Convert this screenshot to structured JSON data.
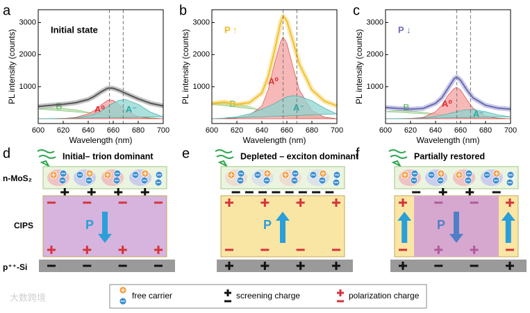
{
  "chart_data": [
    {
      "panel": "a",
      "type": "line",
      "annotation": "Initial state",
      "annotation_color": "#000000",
      "xlabel": "Wavelength (nm)",
      "ylabel": "PL intensity (counts)",
      "xlim": [
        600,
        700
      ],
      "ylim": [
        -150,
        3400
      ],
      "xticks": [
        600,
        620,
        640,
        660,
        680,
        700
      ],
      "yticks": [
        1000,
        2000,
        3000
      ],
      "vlines": [
        657,
        668
      ],
      "x": [
        600,
        610,
        620,
        630,
        640,
        645,
        650,
        655,
        657,
        660,
        665,
        670,
        680,
        690,
        700
      ],
      "series": [
        {
          "color": "#555555",
          "values": [
            380,
            420,
            450,
            500,
            600,
            700,
            830,
            940,
            960,
            950,
            880,
            790,
            620,
            480,
            400
          ]
        },
        {
          "name": "B",
          "color": "#7cc47a",
          "fill": "#b9dca5",
          "values": [
            300,
            330,
            320,
            280,
            200,
            160,
            120,
            80,
            60,
            50,
            30,
            20,
            10,
            5,
            0
          ]
        },
        {
          "name": "A⁰",
          "color": "#e03030",
          "fill": "#f4a0a0",
          "values": [
            0,
            0,
            10,
            40,
            150,
            260,
            420,
            560,
            590,
            570,
            430,
            260,
            60,
            10,
            0
          ]
        },
        {
          "name": "A⁻",
          "color": "#2aa8a0",
          "fill": "#8fd6d0",
          "values": [
            0,
            0,
            10,
            30,
            90,
            140,
            230,
            360,
            420,
            490,
            580,
            600,
            450,
            200,
            60
          ]
        }
      ]
    },
    {
      "panel": "b",
      "type": "line",
      "annotation": "P ↑",
      "annotation_color": "#f2b81e",
      "xlabel": "Wavelength (nm)",
      "ylabel": "PL intensity (counts)",
      "xlim": [
        600,
        700
      ],
      "ylim": [
        -150,
        3400
      ],
      "xticks": [
        600,
        620,
        640,
        660,
        680,
        700
      ],
      "yticks": [
        1000,
        2000,
        3000
      ],
      "vlines": [
        657,
        668
      ],
      "x": [
        600,
        610,
        620,
        630,
        640,
        645,
        650,
        655,
        657,
        660,
        665,
        670,
        680,
        690,
        700
      ],
      "series": [
        {
          "color": "#f2c12e",
          "values": [
            480,
            520,
            450,
            500,
            800,
            1300,
            2100,
            3000,
            3200,
            3050,
            2400,
            1700,
            900,
            550,
            400
          ]
        },
        {
          "name": "B",
          "color": "#7cc47a",
          "fill": "#b9dca5",
          "values": [
            450,
            500,
            470,
            380,
            250,
            180,
            120,
            80,
            60,
            50,
            30,
            20,
            10,
            5,
            0
          ]
        },
        {
          "name": "A⁰",
          "color": "#e03030",
          "fill": "#f4a0a0",
          "values": [
            0,
            0,
            20,
            100,
            400,
            900,
            1700,
            2400,
            2550,
            2350,
            1600,
            900,
            250,
            50,
            0
          ]
        },
        {
          "name": "A⁻",
          "color": "#2aa8a0",
          "fill": "#8fd6d0",
          "values": [
            0,
            20,
            60,
            150,
            300,
            380,
            470,
            580,
            630,
            680,
            720,
            700,
            560,
            330,
            150
          ]
        }
      ]
    },
    {
      "panel": "c",
      "type": "line",
      "annotation": "P ↓",
      "annotation_color": "#6a6ab8",
      "xlabel": "Wavelength (nm)",
      "ylabel": "PL intensity (counts)",
      "xlim": [
        600,
        700
      ],
      "ylim": [
        -150,
        3400
      ],
      "xticks": [
        600,
        620,
        640,
        660,
        680,
        700
      ],
      "yticks": [
        1000,
        2000,
        3000
      ],
      "vlines": [
        657,
        668
      ],
      "x": [
        600,
        610,
        620,
        630,
        640,
        645,
        650,
        655,
        657,
        660,
        665,
        670,
        680,
        690,
        700
      ],
      "series": [
        {
          "color": "#6a6ab8",
          "values": [
            350,
            320,
            300,
            320,
            480,
            650,
            950,
            1250,
            1300,
            1200,
            900,
            650,
            420,
            330,
            300
          ]
        },
        {
          "name": "B",
          "color": "#7cc47a",
          "fill": "#b9dca5",
          "values": [
            220,
            260,
            250,
            200,
            150,
            110,
            80,
            50,
            40,
            30,
            20,
            10,
            5,
            0,
            0
          ]
        },
        {
          "name": "A⁰",
          "color": "#e03030",
          "fill": "#f4a0a0",
          "values": [
            0,
            0,
            10,
            40,
            220,
            420,
            730,
            950,
            980,
            900,
            600,
            330,
            80,
            10,
            0
          ]
        },
        {
          "name": "A⁻",
          "color": "#2aa8a0",
          "fill": "#8fd6d0",
          "values": [
            0,
            0,
            10,
            30,
            80,
            110,
            150,
            200,
            220,
            250,
            280,
            290,
            220,
            120,
            60
          ]
        }
      ]
    }
  ],
  "diagram": {
    "panels": [
      {
        "label": "d",
        "title": "Initial– trion dominant"
      },
      {
        "label": "e",
        "title": "Depleted – exciton dominant"
      },
      {
        "label": "f",
        "title": "Partially restored"
      }
    ],
    "layers": [
      "n-MoS₂",
      "CIPS",
      "p⁺⁺-Si"
    ],
    "polarization_label": "P",
    "legend": [
      "free carrier",
      "screening charge",
      "polarization charge"
    ],
    "watermark": "大数跨境"
  }
}
